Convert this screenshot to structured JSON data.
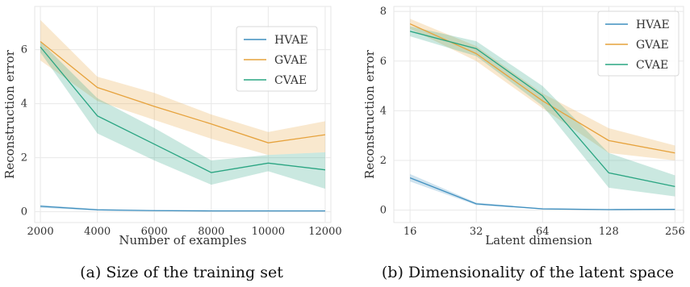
{
  "colors": {
    "HVAE": "#3f8fbf",
    "GVAE": "#e6a23c",
    "CVAE": "#2aa582"
  },
  "chart_data": [
    {
      "type": "line",
      "caption": "(a) Size of the training set",
      "xlabel": "Number of examples",
      "ylabel": "Reconstruction error",
      "x_scale": "linear",
      "xlim": [
        1800,
        12200
      ],
      "ylim": [
        -0.4,
        7.6
      ],
      "xticks": [
        2000,
        4000,
        6000,
        8000,
        10000,
        12000
      ],
      "yticks": [
        0,
        2,
        4,
        6
      ],
      "legend_position": "top-right",
      "grid": true,
      "x": [
        2000,
        4000,
        6000,
        8000,
        10000,
        12000
      ],
      "series": [
        {
          "name": "HVAE",
          "values": [
            0.2,
            0.07,
            0.04,
            0.03,
            0.03,
            0.03
          ],
          "lower": [
            0.15,
            0.04,
            0.02,
            0.01,
            0.01,
            0.01
          ],
          "upper": [
            0.25,
            0.1,
            0.06,
            0.05,
            0.05,
            0.05
          ]
        },
        {
          "name": "GVAE",
          "values": [
            6.3,
            4.6,
            3.9,
            3.25,
            2.55,
            2.85
          ],
          "lower": [
            5.6,
            4.1,
            3.4,
            2.7,
            2.1,
            2.2
          ],
          "upper": [
            7.1,
            5.0,
            4.4,
            3.6,
            2.95,
            3.35
          ]
        },
        {
          "name": "CVAE",
          "values": [
            6.1,
            3.55,
            2.5,
            1.45,
            1.8,
            1.55
          ],
          "lower": [
            5.9,
            2.9,
            1.9,
            1.0,
            1.5,
            0.85
          ],
          "upper": [
            6.3,
            4.2,
            3.1,
            1.9,
            2.1,
            2.2
          ]
        }
      ]
    },
    {
      "type": "line",
      "caption": "(b) Dimensionality of the latent space",
      "xlabel": "Latent dimension",
      "ylabel": "Reconstruction error",
      "x_scale": "log2",
      "xlim": [
        13.5,
        280
      ],
      "ylim": [
        -0.5,
        8.2
      ],
      "xticks": [
        16,
        32,
        64,
        128,
        256
      ],
      "yticks": [
        0,
        2,
        4,
        6,
        8
      ],
      "legend_position": "top-right",
      "grid": true,
      "x": [
        16,
        32,
        64,
        128,
        256
      ],
      "series": [
        {
          "name": "HVAE",
          "values": [
            1.3,
            0.25,
            0.05,
            0.02,
            0.03
          ],
          "lower": [
            1.15,
            0.2,
            0.03,
            0.0,
            0.01
          ],
          "upper": [
            1.45,
            0.3,
            0.07,
            0.04,
            0.05
          ]
        },
        {
          "name": "GVAE",
          "values": [
            7.5,
            6.3,
            4.4,
            2.8,
            2.3
          ],
          "lower": [
            7.3,
            6.0,
            4.1,
            2.3,
            2.0
          ],
          "upper": [
            7.7,
            6.6,
            4.7,
            3.3,
            2.6
          ]
        },
        {
          "name": "CVAE",
          "values": [
            7.2,
            6.5,
            4.6,
            1.5,
            0.95
          ],
          "lower": [
            7.0,
            6.2,
            4.2,
            0.9,
            0.55
          ],
          "upper": [
            7.4,
            6.8,
            5.0,
            2.3,
            1.4
          ]
        }
      ]
    }
  ]
}
